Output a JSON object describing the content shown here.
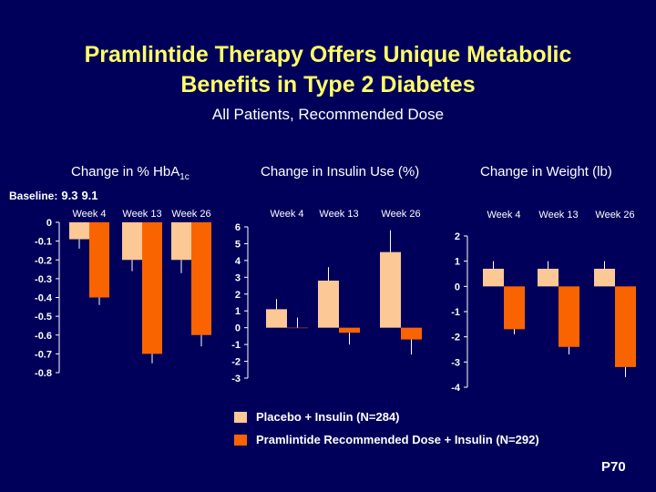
{
  "slide": {
    "title_line1": "Pramlintide Therapy Offers Unique Metabolic",
    "title_line2": "Benefits in Type 2 Diabetes",
    "subtitle": "All Patients, Recommended Dose",
    "slide_number": "P70"
  },
  "colors": {
    "background": "#00005a",
    "title": "#ffff66",
    "placebo": "#fcc896",
    "pramlintide": "#fa6400",
    "text": "#ffffff"
  },
  "legend": [
    {
      "label": "Placebo + Insulin (N=284)",
      "color": "#fcc896"
    },
    {
      "label": "Pramlintide Recommended Dose + Insulin (N=292)",
      "color": "#fa6400"
    }
  ],
  "baseline": {
    "label": "Baseline:",
    "values": [
      "9.3",
      "9.1"
    ]
  },
  "chart_data": [
    {
      "type": "bar",
      "title_main": "Change in % HbA",
      "title_sub": "1c",
      "categories": [
        "Week 4",
        "Week 13",
        "Week 26"
      ],
      "series": [
        {
          "name": "Placebo + Insulin (N=284)",
          "values": [
            -0.09,
            -0.2,
            -0.2
          ],
          "errors": [
            0.05,
            0.06,
            0.07
          ]
        },
        {
          "name": "Pramlintide Recommended Dose + Insulin (N=292)",
          "values": [
            -0.4,
            -0.7,
            -0.6
          ],
          "errors": [
            0.04,
            0.05,
            0.06
          ]
        }
      ],
      "ylim": [
        -0.8,
        0
      ],
      "yticks": [
        "0",
        "-0.1",
        "-0.2",
        "-0.3",
        "-0.4",
        "-0.5",
        "-0.6",
        "-0.7",
        "-0.8"
      ],
      "ytick_values": [
        0,
        -0.1,
        -0.2,
        -0.3,
        -0.4,
        -0.5,
        -0.6,
        -0.7,
        -0.8
      ],
      "grid": false
    },
    {
      "type": "bar",
      "title_main": "Change in Insulin Use (%)",
      "categories": [
        "Week 4",
        "Week 13",
        "Week 26"
      ],
      "series": [
        {
          "name": "Placebo + Insulin (N=284)",
          "values": [
            1.1,
            2.8,
            4.5
          ],
          "errors": [
            0.6,
            0.8,
            1.3
          ]
        },
        {
          "name": "Pramlintide Recommended Dose + Insulin (N=292)",
          "values": [
            0,
            -0.3,
            -0.7
          ],
          "errors": [
            0.6,
            0.7,
            0.9
          ]
        }
      ],
      "ylim": [
        -3,
        6
      ],
      "yticks": [
        "6",
        "5",
        "4",
        "3",
        "2",
        "1",
        "0",
        "-1",
        "-2",
        "-3"
      ],
      "ytick_values": [
        6,
        5,
        4,
        3,
        2,
        1,
        0,
        -1,
        -2,
        -3
      ],
      "grid": false
    },
    {
      "type": "bar",
      "title_main": "Change in Weight (lb)",
      "categories": [
        "Week 4",
        "Week 13",
        "Week 26"
      ],
      "series": [
        {
          "name": "Placebo + Insulin (N=284)",
          "values": [
            0.7,
            0.7,
            0.7
          ],
          "errors": [
            0.3,
            0.3,
            0.3
          ]
        },
        {
          "name": "Pramlintide Recommended Dose + Insulin (N=292)",
          "values": [
            -1.7,
            -2.4,
            -3.2
          ],
          "errors": [
            0.2,
            0.3,
            0.4
          ]
        }
      ],
      "ylim": [
        -4,
        2
      ],
      "yticks": [
        "2",
        "1",
        "0",
        "-1",
        "-2",
        "-3",
        "-4"
      ],
      "ytick_values": [
        2,
        1,
        0,
        -1,
        -2,
        -3,
        -4
      ],
      "grid": false
    }
  ]
}
